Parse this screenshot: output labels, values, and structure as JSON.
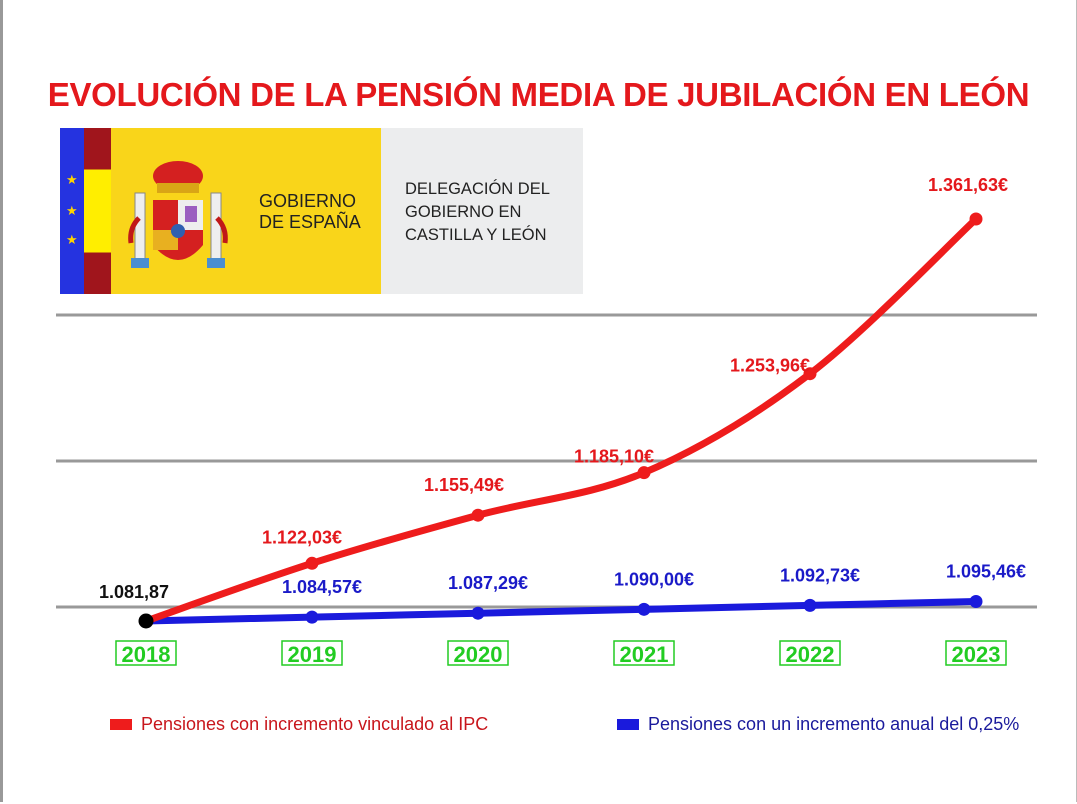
{
  "title": "EVOLUCIÓN DE LA PENSIÓN MEDIA DE JUBILACIÓN EN LEÓN",
  "logo": {
    "left_text": [
      "GOBIERNO",
      "DE ESPAÑA"
    ],
    "right_text": [
      "DELEGACIÓN DEL",
      "GOBIERNO EN",
      "CASTILLA Y LEÓN"
    ]
  },
  "chart_data": {
    "type": "line",
    "title": "EVOLUCIÓN DE LA PENSIÓN MEDIA DE JUBILACIÓN EN LEÓN",
    "categories": [
      "2018",
      "2019",
      "2020",
      "2021",
      "2022",
      "2023"
    ],
    "series": [
      {
        "name": "Pensiones con incremento vinculado al IPC",
        "color": "#ee1c1c",
        "values": [
          1081.87,
          1122.03,
          1155.49,
          1185.1,
          1253.96,
          1361.63
        ],
        "labels": [
          "1.081,87",
          "1.122,03€",
          "1.155,49€",
          "1.185,10€",
          "1.253,96€",
          "1.361,63€"
        ]
      },
      {
        "name": "Pensiones con un incremento anual del 0,25%",
        "color": "#1a1adc",
        "values": [
          1081.87,
          1084.57,
          1087.29,
          1090.0,
          1092.73,
          1095.46
        ],
        "labels": [
          "1.081,87",
          "1.084,57€",
          "1.087,29€",
          "1.090,00€",
          "1.092,73€",
          "1.095,46€"
        ]
      }
    ],
    "start_point_color": "#000000",
    "category_label_color": "#22cc22",
    "grid": true,
    "legend_placement": "bottom"
  }
}
